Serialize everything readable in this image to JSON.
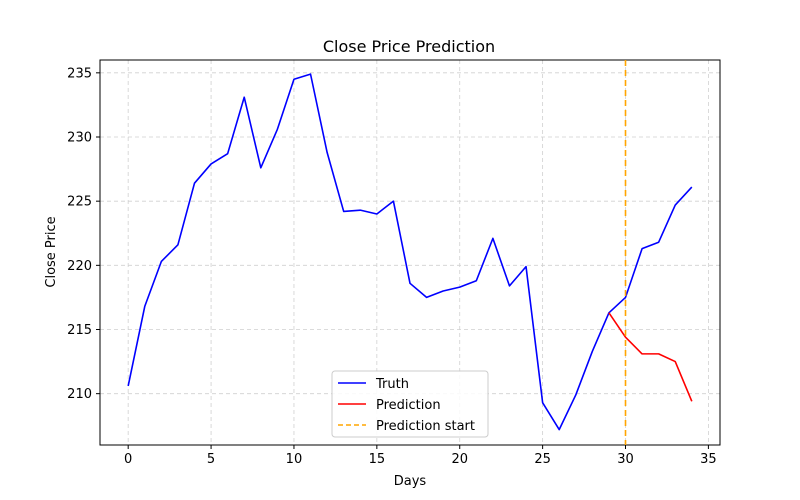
{
  "chart_data": {
    "type": "line",
    "title": "Close Price Prediction",
    "xlabel": "Days",
    "ylabel": "Close Price",
    "xlim": [
      -1.7,
      35.7
    ],
    "ylim": [
      206.0,
      236.0
    ],
    "xticks": [
      0,
      5,
      10,
      15,
      20,
      25,
      30,
      35
    ],
    "yticks": [
      210,
      215,
      220,
      225,
      230,
      235
    ],
    "grid": true,
    "legend_position": "bottom-center",
    "series": [
      {
        "name": "Truth",
        "color": "#0000ff",
        "style": "solid",
        "x": [
          0,
          1,
          2,
          3,
          4,
          5,
          6,
          7,
          8,
          9,
          10,
          11,
          12,
          13,
          14,
          15,
          16,
          17,
          18,
          19,
          20,
          21,
          22,
          23,
          24,
          25,
          26,
          27,
          28,
          29,
          30,
          31,
          32,
          33,
          34
        ],
        "values": [
          210.6,
          216.8,
          220.3,
          221.6,
          226.4,
          227.9,
          228.7,
          233.1,
          227.6,
          230.6,
          234.5,
          234.9,
          228.8,
          224.2,
          224.3,
          224.0,
          225.0,
          218.6,
          217.5,
          218.0,
          218.3,
          218.8,
          222.1,
          218.4,
          219.9,
          209.3,
          207.2,
          209.9,
          213.3,
          216.3,
          217.5,
          221.3,
          221.8,
          224.7,
          226.1
        ]
      },
      {
        "name": "Prediction",
        "color": "#ff0000",
        "style": "solid",
        "x": [
          29,
          30,
          31,
          32,
          33,
          34
        ],
        "values": [
          216.3,
          214.4,
          213.1,
          213.1,
          212.5,
          209.4
        ]
      }
    ],
    "vline": {
      "name": "Prediction start",
      "x": 30,
      "color": "#ffa500",
      "style": "dashed"
    }
  }
}
